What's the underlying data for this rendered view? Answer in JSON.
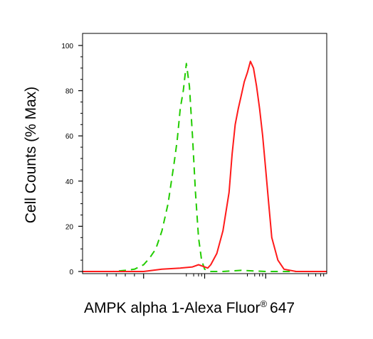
{
  "chart_data": {
    "type": "line",
    "title": "",
    "xlabel": "AMPK alpha 1-Alexa Fluor",
    "xlabel_superscript": "®",
    "xlabel_suffix": "647",
    "ylabel": "Cell Counts (% Max)",
    "ylim": [
      0,
      100
    ],
    "xlim": [
      -1,
      3
    ],
    "x_scale": "biexponential",
    "y_ticks": [
      0,
      20,
      40,
      60,
      80,
      100
    ],
    "y_tick_labels": [
      "0",
      "20",
      "40",
      "60",
      "80",
      "100"
    ],
    "grid": false,
    "series": [
      {
        "color": "#22cc00",
        "line_style": "dashed",
        "x": [
          -1.0,
          -0.75,
          -0.5,
          -0.3,
          -0.15,
          0.0,
          0.1,
          0.2,
          0.3,
          0.4,
          0.5,
          0.55,
          0.6,
          0.65,
          0.7,
          0.75,
          0.8,
          0.85,
          0.9,
          0.95,
          1.0,
          1.1,
          1.3,
          1.6,
          2.0,
          2.5,
          3.0
        ],
        "y": [
          0,
          0,
          0,
          0.5,
          1,
          3,
          6,
          10,
          18,
          30,
          48,
          58,
          72,
          80,
          92,
          82,
          60,
          35,
          15,
          5,
          1,
          0,
          0,
          0.5,
          0,
          0,
          0
        ]
      },
      {
        "color": "#ff1a1a",
        "line_style": "solid",
        "x": [
          -1.0,
          -0.5,
          0.0,
          0.3,
          0.6,
          0.8,
          0.9,
          1.0,
          1.05,
          1.1,
          1.2,
          1.3,
          1.4,
          1.45,
          1.5,
          1.55,
          1.6,
          1.65,
          1.7,
          1.75,
          1.8,
          1.85,
          1.9,
          1.95,
          2.0,
          2.05,
          2.1,
          2.2,
          2.3,
          2.5,
          2.8,
          3.0
        ],
        "y": [
          0,
          0,
          0,
          1,
          1.5,
          2,
          3,
          2,
          1.5,
          3,
          8,
          18,
          35,
          52,
          65,
          72,
          78,
          84,
          88,
          93,
          90,
          82,
          72,
          60,
          45,
          30,
          15,
          5,
          1,
          0,
          0,
          0
        ]
      }
    ]
  }
}
